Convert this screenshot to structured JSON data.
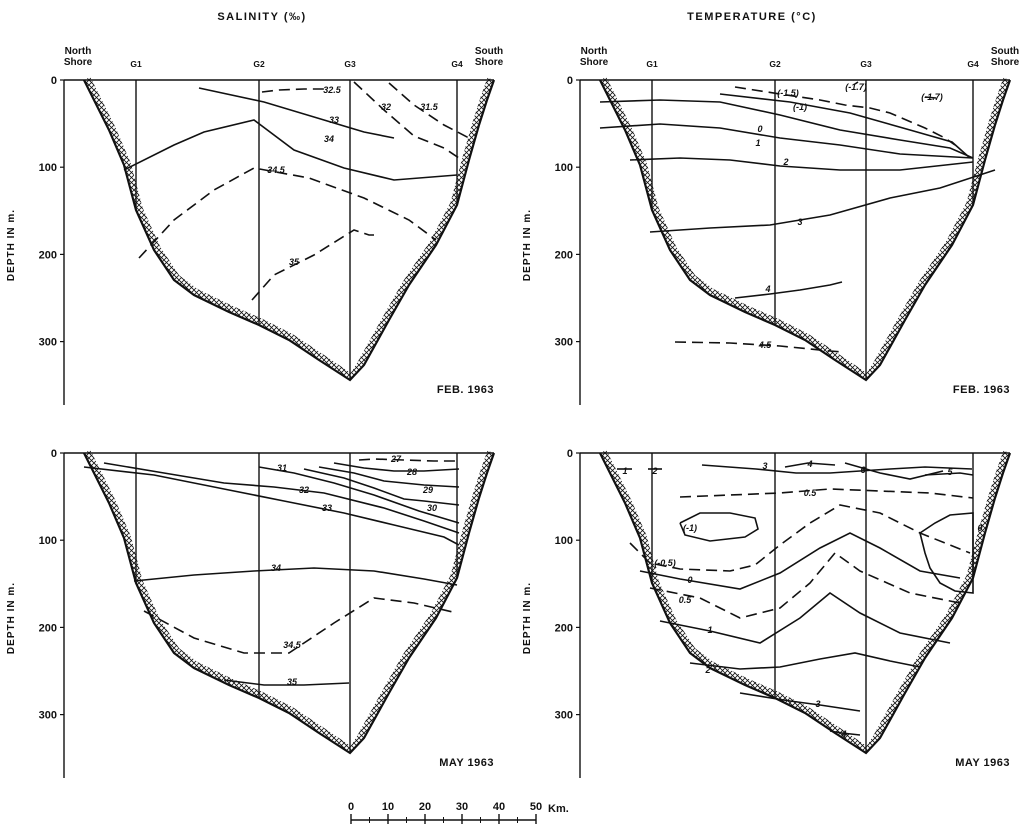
{
  "titles": {
    "salinity": "SALINITY (‰)",
    "temperature": "TEMPERATURE (°C)"
  },
  "shores": {
    "north": [
      "North",
      "Shore"
    ],
    "south": [
      "South",
      "Shore"
    ]
  },
  "stations": [
    "G1",
    "G2",
    "G3",
    "G4"
  ],
  "depth_axis_label": "DEPTH IN m.",
  "depth_ticks": [
    "0",
    "100",
    "200",
    "300"
  ],
  "scale_bar": {
    "ticks": [
      "0",
      "10",
      "20",
      "30",
      "40",
      "50"
    ],
    "unit": "Km."
  },
  "colors": {
    "ink": "#111111",
    "background": "#ffffff"
  },
  "chart_data": [
    {
      "type": "contour",
      "title": "SALINITY (‰)",
      "date_label": "FEB. 1963",
      "ylabel": "DEPTH IN m.",
      "ylim": [
        0,
        350
      ],
      "contours": [
        {
          "level": "32.5",
          "style": "dashed"
        },
        {
          "level": "33",
          "style": "solid"
        },
        {
          "level": "32",
          "style": "dashed"
        },
        {
          "level": "31.5",
          "style": "dashed"
        },
        {
          "level": "34",
          "style": "solid"
        },
        {
          "level": "34.5",
          "style": "dashed"
        },
        {
          "level": "35",
          "style": "dashed"
        }
      ]
    },
    {
      "type": "contour",
      "title": "TEMPERATURE (°C)",
      "date_label": "FEB. 1963",
      "ylabel": "DEPTH IN m.",
      "ylim": [
        0,
        350
      ],
      "contours": [
        {
          "level": "(-1.7)",
          "style": "dashed"
        },
        {
          "level": "(-1.5)",
          "style": "dashed"
        },
        {
          "level": "(-1.7)",
          "style": "dashed"
        },
        {
          "level": "(-1)",
          "style": "solid"
        },
        {
          "level": "0",
          "style": "solid"
        },
        {
          "level": "1",
          "style": "solid"
        },
        {
          "level": "2",
          "style": "solid"
        },
        {
          "level": "3",
          "style": "solid"
        },
        {
          "level": "4",
          "style": "solid"
        },
        {
          "level": "4.5",
          "style": "dashed"
        }
      ]
    },
    {
      "type": "contour",
      "title": "SALINITY (‰)",
      "date_label": "MAY 1963",
      "ylabel": "DEPTH IN m.",
      "ylim": [
        0,
        350
      ],
      "contours": [
        {
          "level": "27",
          "style": "dashed"
        },
        {
          "level": "28",
          "style": "solid"
        },
        {
          "level": "29",
          "style": "solid"
        },
        {
          "level": "30",
          "style": "solid"
        },
        {
          "level": "31",
          "style": "solid"
        },
        {
          "level": "32",
          "style": "solid"
        },
        {
          "level": "33",
          "style": "solid"
        },
        {
          "level": "34",
          "style": "solid"
        },
        {
          "level": "34.5",
          "style": "dashed"
        },
        {
          "level": "35",
          "style": "solid"
        }
      ]
    },
    {
      "type": "contour",
      "title": "TEMPERATURE (°C)",
      "date_label": "MAY 1963",
      "ylabel": "DEPTH IN m.",
      "ylim": [
        0,
        350
      ],
      "contours": [
        {
          "level": "1",
          "style": "solid"
        },
        {
          "level": "2",
          "style": "solid"
        },
        {
          "level": "3",
          "style": "solid"
        },
        {
          "level": "4",
          "style": "solid"
        },
        {
          "level": "6",
          "style": "solid"
        },
        {
          "level": "5",
          "style": "solid"
        },
        {
          "level": "0.5",
          "style": "dashed"
        },
        {
          "level": "(-1)",
          "style": "solid"
        },
        {
          "level": "(-0.5)",
          "style": "dashed"
        },
        {
          "level": "0",
          "style": "solid"
        },
        {
          "level": "0",
          "style": "solid"
        },
        {
          "level": "0.5",
          "style": "dashed"
        },
        {
          "level": "1",
          "style": "solid"
        },
        {
          "level": "2",
          "style": "solid"
        },
        {
          "level": "3",
          "style": "solid"
        },
        {
          "level": "4",
          "style": "solid"
        }
      ]
    }
  ]
}
